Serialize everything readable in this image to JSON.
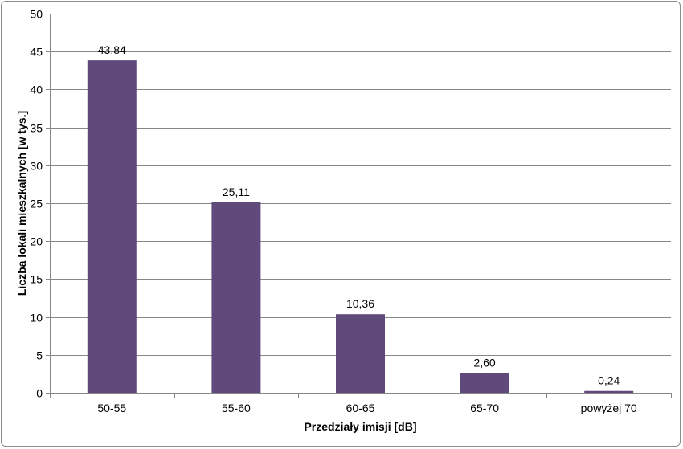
{
  "chart_data": {
    "type": "bar",
    "title": "",
    "xlabel": "Przedziały imisji [dB]",
    "ylabel": "Liczba lokali mieszkalnych [w tys.]",
    "categories": [
      "50-55",
      "55-60",
      "60-65",
      "65-70",
      "powyżej 70"
    ],
    "values": [
      43.84,
      25.11,
      10.36,
      2.6,
      0.24
    ],
    "data_labels": [
      "43,84",
      "25,11",
      "10,36",
      "2,60",
      "0,24"
    ],
    "ylim": [
      0,
      50
    ],
    "yticks": [
      0,
      5,
      10,
      15,
      20,
      25,
      30,
      35,
      40,
      45,
      50
    ],
    "grid": true,
    "legend": "none",
    "bar_color": "#604a7b",
    "grid_color": "#878787"
  }
}
